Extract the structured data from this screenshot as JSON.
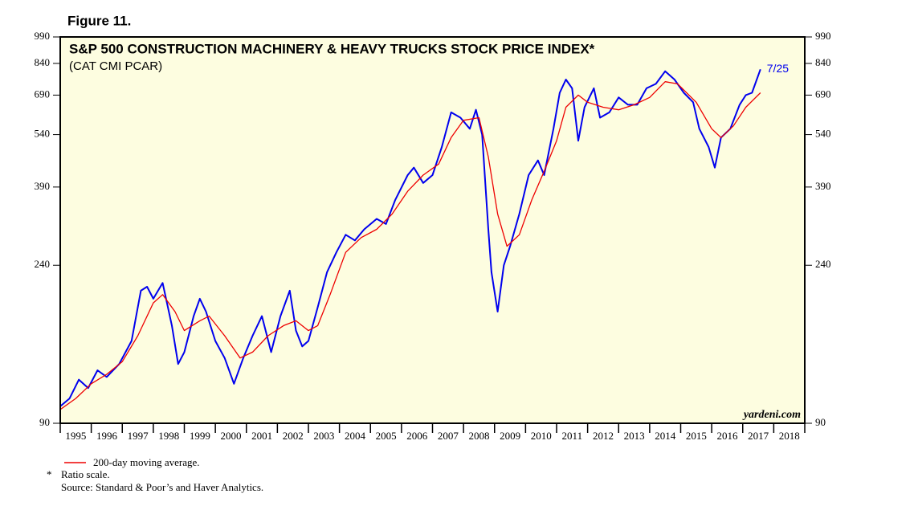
{
  "chart_data": {
    "type": "line",
    "figure_label": "Figure 11.",
    "title": "S&P 500 CONSTRUCTION MACHINERY & HEAVY TRUCKS STOCK PRICE INDEX*",
    "subtitle": "(CAT CMI PCAR)",
    "annotation": "7/25",
    "watermark": "yardeni.com",
    "log_scale": true,
    "xlim": [
      1995,
      2019
    ],
    "xticks": [
      1995,
      1996,
      1997,
      1998,
      1999,
      2000,
      2001,
      2002,
      2003,
      2004,
      2005,
      2006,
      2007,
      2008,
      2009,
      2010,
      2011,
      2012,
      2013,
      2014,
      2015,
      2016,
      2017,
      2018
    ],
    "ylim": [
      90,
      990
    ],
    "yticks": [
      90,
      240,
      390,
      540,
      690,
      840,
      990
    ],
    "series": [
      {
        "color": "#0000ee",
        "x": [
          1995.0,
          1995.3,
          1995.6,
          1995.9,
          1996.2,
          1996.5,
          1996.9,
          1997.3,
          1997.6,
          1997.8,
          1998.0,
          1998.3,
          1998.6,
          1998.8,
          1999.0,
          1999.3,
          1999.5,
          1999.7,
          2000.0,
          2000.3,
          2000.6,
          2000.9,
          2001.2,
          2001.5,
          2001.8,
          2002.1,
          2002.4,
          2002.6,
          2002.8,
          2003.0,
          2003.3,
          2003.6,
          2003.9,
          2004.2,
          2004.5,
          2004.8,
          2005.2,
          2005.5,
          2005.8,
          2006.2,
          2006.4,
          2006.7,
          2007.0,
          2007.3,
          2007.6,
          2007.9,
          2008.2,
          2008.4,
          2008.6,
          2008.8,
          2008.9,
          2009.1,
          2009.3,
          2009.5,
          2009.8,
          2010.1,
          2010.4,
          2010.6,
          2010.9,
          2011.1,
          2011.3,
          2011.5,
          2011.7,
          2011.9,
          2012.2,
          2012.4,
          2012.7,
          2013.0,
          2013.3,
          2013.6,
          2013.9,
          2014.2,
          2014.5,
          2014.8,
          2015.1,
          2015.4,
          2015.6,
          2015.9,
          2016.1,
          2016.3,
          2016.6,
          2016.9,
          2017.1,
          2017.3,
          2017.57
        ],
        "values": [
          100,
          105,
          118,
          112,
          125,
          120,
          130,
          150,
          205,
          210,
          195,
          215,
          165,
          130,
          140,
          175,
          195,
          180,
          150,
          135,
          115,
          135,
          155,
          175,
          140,
          175,
          205,
          160,
          145,
          150,
          185,
          230,
          260,
          290,
          280,
          300,
          320,
          310,
          360,
          420,
          440,
          400,
          420,
          500,
          620,
          600,
          560,
          630,
          540,
          300,
          230,
          180,
          240,
          270,
          330,
          420,
          460,
          420,
          560,
          700,
          760,
          720,
          520,
          640,
          720,
          600,
          620,
          680,
          650,
          650,
          720,
          740,
          800,
          760,
          700,
          660,
          560,
          500,
          440,
          530,
          560,
          650,
          690,
          700,
          810
        ]
      },
      {
        "name": "200-day moving average.",
        "color": "#ee0000",
        "x": [
          1995.0,
          1995.5,
          1996.0,
          1996.5,
          1997.0,
          1997.5,
          1998.0,
          1998.3,
          1998.7,
          1999.0,
          1999.5,
          1999.8,
          2000.3,
          2000.8,
          2001.2,
          2001.7,
          2002.2,
          2002.6,
          2003.0,
          2003.3,
          2003.7,
          2004.2,
          2004.7,
          2005.2,
          2005.7,
          2006.2,
          2006.7,
          2007.2,
          2007.6,
          2008.0,
          2008.5,
          2008.8,
          2009.1,
          2009.4,
          2009.8,
          2010.2,
          2010.6,
          2011.0,
          2011.3,
          2011.7,
          2012.0,
          2012.5,
          2013.0,
          2013.5,
          2014.0,
          2014.5,
          2014.9,
          2015.5,
          2016.0,
          2016.3,
          2016.7,
          2017.1,
          2017.57
        ],
        "values": [
          98,
          105,
          115,
          122,
          132,
          155,
          190,
          200,
          180,
          160,
          170,
          175,
          155,
          135,
          140,
          155,
          165,
          170,
          160,
          165,
          200,
          260,
          285,
          300,
          330,
          380,
          420,
          450,
          530,
          590,
          600,
          470,
          330,
          270,
          290,
          360,
          430,
          520,
          640,
          690,
          660,
          640,
          630,
          650,
          680,
          750,
          740,
          660,
          560,
          530,
          570,
          640,
          700
        ]
      }
    ],
    "footnote_mark": "*",
    "footnote": "Ratio scale.",
    "source": "Source: Standard & Poor’s and Haver Analytics."
  }
}
